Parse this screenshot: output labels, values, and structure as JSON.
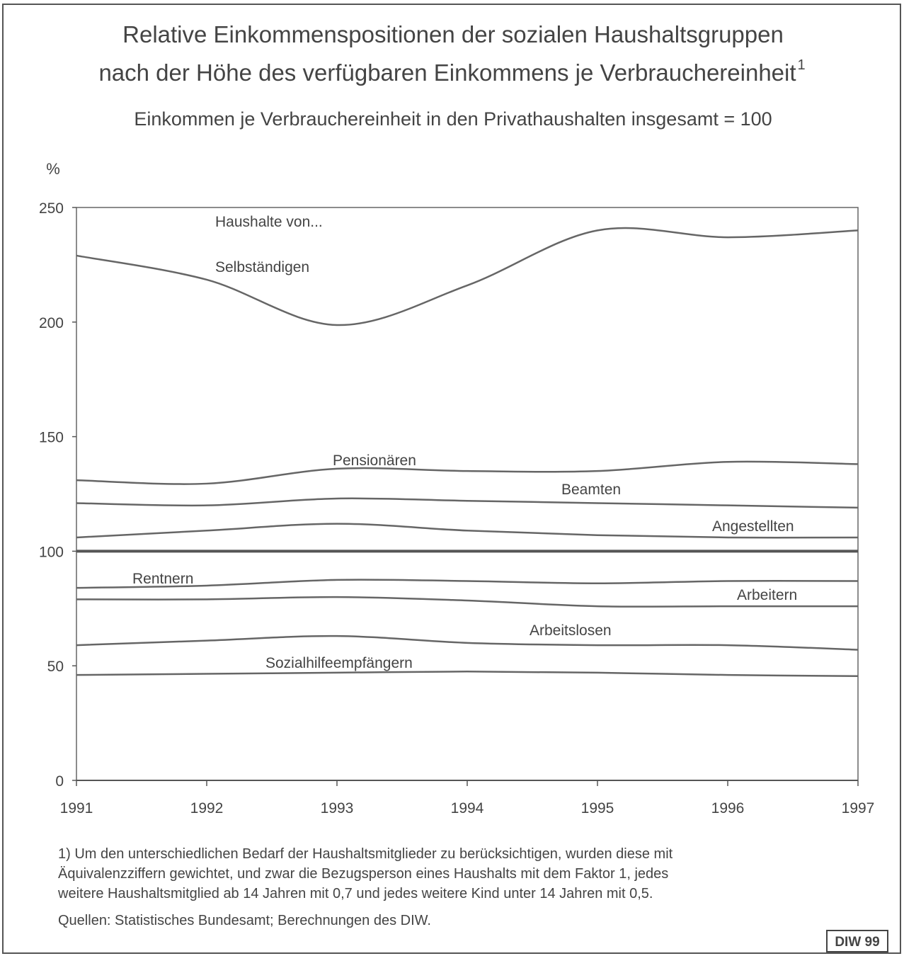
{
  "chart_data": {
    "type": "line",
    "title": [
      "Relative Einkommenspositionen der sozialen Haushaltsgruppen",
      "nach der Höhe des verfügbaren Einkommens je Verbrauchereinheit"
    ],
    "title_footnote_mark": "1",
    "subtitle": "Einkommen je Verbrauchereinheit in den Privathaushalten insgesamt = 100",
    "y_label": "%",
    "annotation": "Haushalte von...",
    "x": [
      1991,
      1992,
      1993,
      1994,
      1995,
      1996,
      1997
    ],
    "xlim": [
      1991,
      1997
    ],
    "xticks": [
      1991,
      1992,
      1993,
      1994,
      1995,
      1996,
      1997
    ],
    "ylim": [
      0,
      250
    ],
    "yticks": [
      0,
      50,
      100,
      150,
      200,
      250
    ],
    "reference_line": 100,
    "series": [
      {
        "name": "Selbständigen",
        "color": "#666666",
        "values": [
          229,
          218.5,
          198.7,
          216,
          240,
          237,
          240
        ]
      },
      {
        "name": "Pensionären",
        "color": "#666666",
        "values": [
          131,
          129.5,
          136,
          135,
          135,
          139,
          138
        ]
      },
      {
        "name": "Beamten",
        "color": "#666666",
        "values": [
          121,
          120,
          123,
          122,
          121,
          120,
          119
        ]
      },
      {
        "name": "Angestellten",
        "color": "#666666",
        "values": [
          106,
          109,
          112,
          109,
          107,
          106,
          106
        ]
      },
      {
        "name": "Rentnern",
        "color": "#666666",
        "values": [
          84,
          85,
          87.5,
          87,
          86,
          87,
          87
        ]
      },
      {
        "name": "Arbeitern",
        "color": "#666666",
        "values": [
          79,
          79,
          80,
          78.5,
          76,
          76,
          76
        ]
      },
      {
        "name": "Arbeitslosen",
        "color": "#666666",
        "values": [
          59,
          61,
          63,
          60,
          59,
          59,
          57
        ]
      },
      {
        "name": "Sozialhilfeempfängern",
        "color": "#666666",
        "values": [
          46,
          46.5,
          47,
          47.5,
          47,
          46,
          45.5
        ]
      }
    ],
    "footnote": [
      "1) Um den unterschiedlichen Bedarf der Haushaltsmitglieder zu berücksichtigen, wurden diese mit",
      "Äquivalenzziffern gewichtet, und zwar die Bezugsperson eines Haushalts mit dem Faktor 1, jedes",
      "weitere Haushaltsmitglied ab 14 Jahren mit 0,7 und jedes weitere Kind unter 14 Jahren mit 0,5."
    ],
    "source": "Quellen: Statistisches Bundesamt; Berechnungen des DIW.",
    "badge": "DIW 99"
  }
}
